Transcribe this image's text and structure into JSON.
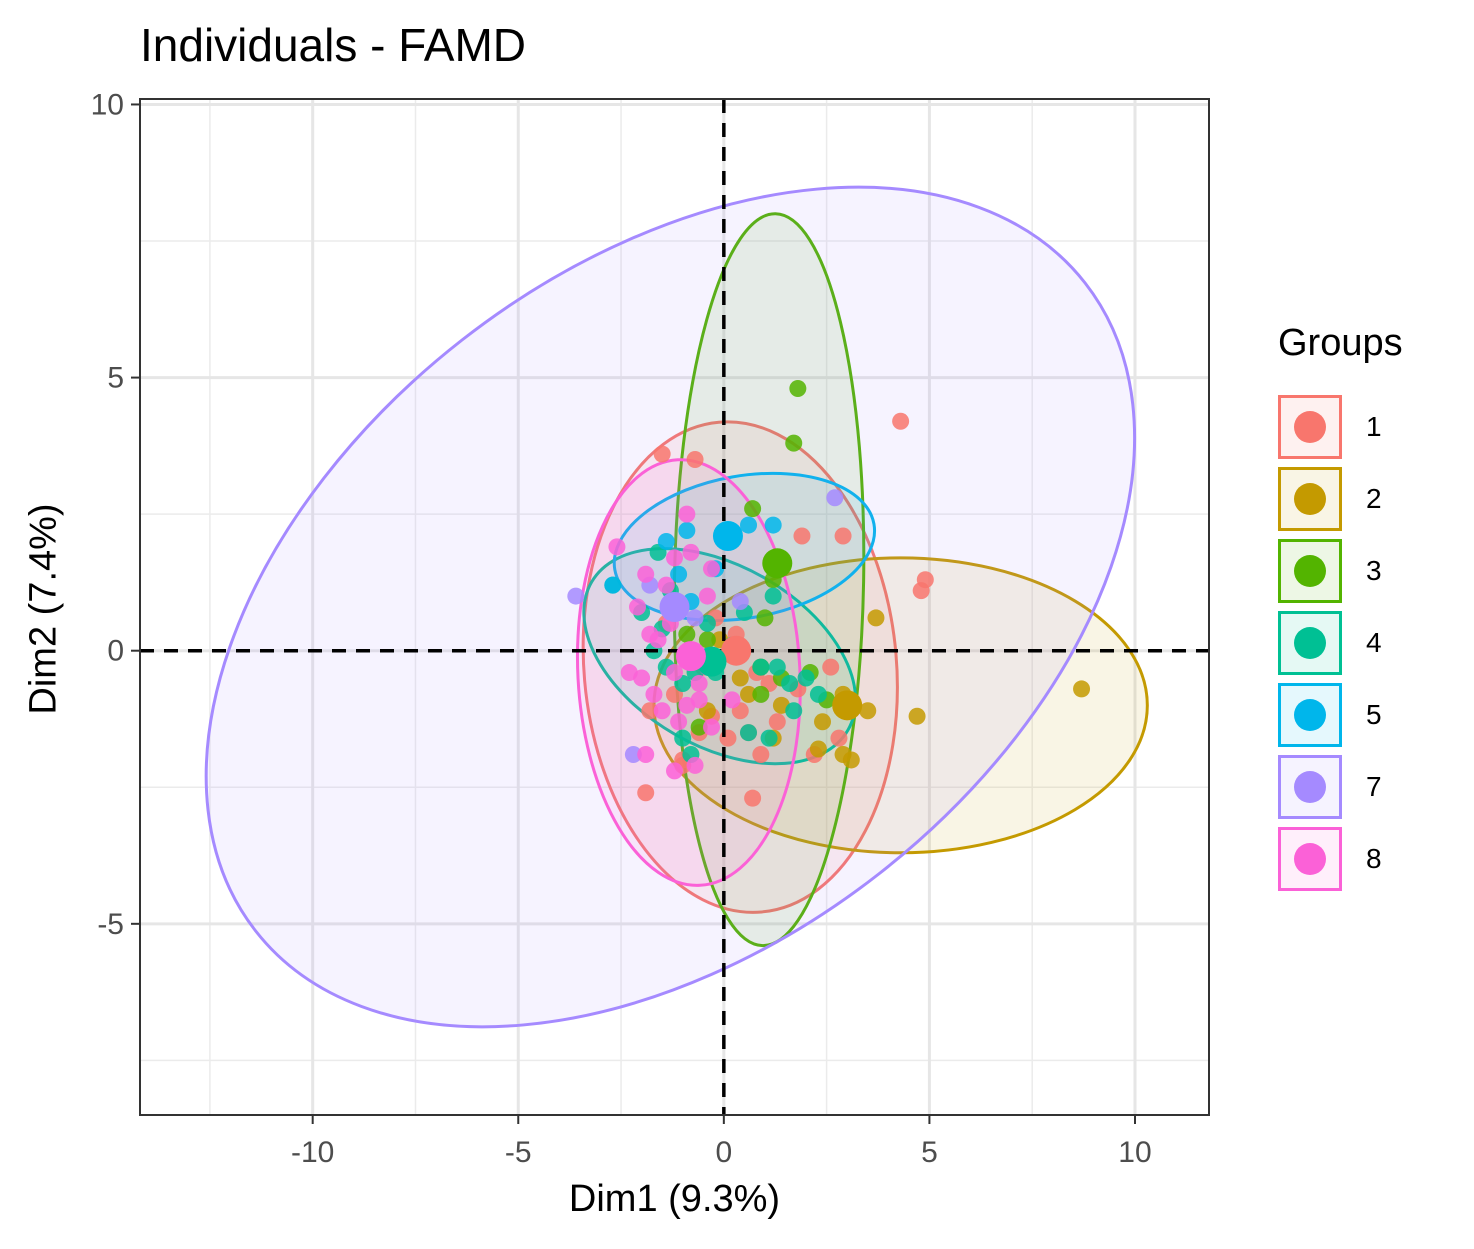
{
  "chart_data": {
    "type": "scatter",
    "title": "Individuals - FAMD",
    "xlabel": "Dim1 (9.3%)",
    "ylabel": "Dim2 (7.4%)",
    "xlim": [
      -14.2,
      11.8
    ],
    "ylim": [
      -8.5,
      10.1
    ],
    "x_ticks": [
      -10,
      -5,
      0,
      5,
      10
    ],
    "x_tick_labels": [
      "-10",
      "-5",
      "0",
      "5",
      "10"
    ],
    "y_ticks": [
      -5,
      0,
      5,
      10
    ],
    "y_tick_labels": [
      "-5",
      "0",
      "5",
      "10"
    ],
    "grid": true,
    "reference_lines": {
      "x": 0,
      "y": 0,
      "style": "dashed"
    },
    "legend": {
      "title": "Groups",
      "position": "right"
    },
    "groups": [
      {
        "name": "1",
        "color": "#F8766D",
        "centroid": [
          0.3,
          0.0
        ],
        "ellipse": {
          "cx": 0.4,
          "cy": -0.3,
          "rx": 3.8,
          "ry": 4.5,
          "angle": 5
        },
        "points": [
          [
            -1.5,
            3.6
          ],
          [
            -0.7,
            3.5
          ],
          [
            4.3,
            4.2
          ],
          [
            4.9,
            1.3
          ],
          [
            4.8,
            1.1
          ],
          [
            2.9,
            2.1
          ],
          [
            1.9,
            2.1
          ],
          [
            0.3,
            0.3
          ],
          [
            -0.5,
            -0.3
          ],
          [
            1.1,
            -0.6
          ],
          [
            -0.3,
            -1.2
          ],
          [
            0.9,
            -1.9
          ],
          [
            -1.0,
            -2.0
          ],
          [
            0.7,
            -2.7
          ],
          [
            -1.9,
            -2.6
          ],
          [
            -1.2,
            -0.8
          ],
          [
            0.1,
            -1.6
          ],
          [
            0.8,
            -0.4
          ],
          [
            -0.6,
            -1.5
          ],
          [
            1.8,
            -0.7
          ],
          [
            2.6,
            -0.3
          ],
          [
            -1.4,
            0.5
          ],
          [
            0.4,
            -1.1
          ],
          [
            -0.2,
            0.6
          ],
          [
            0.6,
            -1.5
          ],
          [
            1.3,
            -1.3
          ],
          [
            -1.8,
            -1.1
          ],
          [
            -1.0,
            -2.1
          ],
          [
            2.2,
            -1.9
          ],
          [
            2.8,
            -1.6
          ]
        ]
      },
      {
        "name": "2",
        "color": "#C49A00",
        "centroid": [
          3.0,
          -1.0
        ],
        "ellipse": {
          "cx": 4.3,
          "cy": -1.0,
          "rx": 6.0,
          "ry": 2.7,
          "angle": 0
        },
        "points": [
          [
            8.7,
            -0.7
          ],
          [
            4.7,
            -1.2
          ],
          [
            3.7,
            0.6
          ],
          [
            3.5,
            -1.1
          ],
          [
            3.1,
            -2.0
          ],
          [
            2.9,
            -0.8
          ],
          [
            2.4,
            -1.3
          ],
          [
            1.4,
            -1.0
          ],
          [
            0.4,
            -0.5
          ],
          [
            -0.1,
            0.2
          ],
          [
            0.6,
            -0.8
          ],
          [
            2.9,
            -1.9
          ],
          [
            2.3,
            -1.8
          ],
          [
            -0.4,
            -1.1
          ],
          [
            1.2,
            -1.6
          ]
        ]
      },
      {
        "name": "3",
        "color": "#53B400",
        "centroid": [
          1.3,
          1.6
        ],
        "ellipse": {
          "cx": 1.1,
          "cy": 1.3,
          "rx": 2.3,
          "ry": 6.7,
          "angle": -1
        },
        "points": [
          [
            1.8,
            4.8
          ],
          [
            1.7,
            3.8
          ],
          [
            0.7,
            2.6
          ],
          [
            1.2,
            1.3
          ],
          [
            0.9,
            -0.3
          ],
          [
            1.4,
            -0.5
          ],
          [
            0.9,
            -0.8
          ],
          [
            -0.4,
            0.2
          ],
          [
            2.1,
            -0.4
          ],
          [
            1.0,
            0.6
          ],
          [
            2.5,
            -0.9
          ],
          [
            -0.6,
            -1.4
          ],
          [
            -0.9,
            0.3
          ]
        ]
      },
      {
        "name": "4",
        "color": "#00C094",
        "centroid": [
          -0.3,
          -0.2
        ],
        "ellipse": {
          "cx": -0.1,
          "cy": -0.1,
          "rx": 3.6,
          "ry": 1.65,
          "angle": -30
        },
        "points": [
          [
            -1.6,
            1.8
          ],
          [
            -1.3,
            1.1
          ],
          [
            -1.5,
            0.4
          ],
          [
            -1.7,
            0.0
          ],
          [
            -1.4,
            -0.3
          ],
          [
            -1.0,
            -0.6
          ],
          [
            -0.7,
            -0.4
          ],
          [
            -0.4,
            0.5
          ],
          [
            0.3,
            -0.1
          ],
          [
            0.9,
            -0.3
          ],
          [
            1.3,
            -0.3
          ],
          [
            1.6,
            -0.6
          ],
          [
            2.0,
            -0.5
          ],
          [
            2.3,
            -0.8
          ],
          [
            -1.0,
            -1.6
          ],
          [
            -0.2,
            -0.4
          ],
          [
            0.5,
            0.7
          ],
          [
            1.2,
            1.0
          ],
          [
            -2.7,
            1.2
          ],
          [
            -2.0,
            0.7
          ],
          [
            0.6,
            -1.5
          ],
          [
            1.7,
            -1.1
          ],
          [
            -0.8,
            -1.9
          ],
          [
            0.2,
            0.1
          ],
          [
            1.1,
            -1.6
          ]
        ]
      },
      {
        "name": "5",
        "color": "#00B6EB",
        "centroid": [
          0.1,
          2.1
        ],
        "ellipse": {
          "cx": 0.5,
          "cy": 1.9,
          "rx": 3.2,
          "ry": 1.3,
          "angle": 10
        },
        "points": [
          [
            -1.4,
            2.0
          ],
          [
            -0.9,
            2.2
          ],
          [
            -0.2,
            1.5
          ],
          [
            0.6,
            2.3
          ],
          [
            1.2,
            2.3
          ],
          [
            -2.7,
            1.2
          ],
          [
            -1.1,
            1.4
          ],
          [
            -0.8,
            0.9
          ]
        ]
      },
      {
        "name": "7",
        "color": "#A58AFF",
        "centroid": [
          -1.2,
          0.8
        ],
        "ellipse": {
          "cx": -1.3,
          "cy": 0.8,
          "rx": 12.8,
          "ry": 6.2,
          "angle": 38
        },
        "points": [
          [
            -3.6,
            1.0
          ],
          [
            2.7,
            2.8
          ],
          [
            -2.2,
            -1.9
          ],
          [
            -1.8,
            1.2
          ],
          [
            -0.7,
            0.6
          ],
          [
            0.4,
            0.9
          ]
        ]
      },
      {
        "name": "8",
        "color": "#FB61D7",
        "centroid": [
          -0.8,
          -0.1
        ],
        "ellipse": {
          "cx": -0.85,
          "cy": -0.4,
          "rx": 2.7,
          "ry": 3.9,
          "angle": 3
        },
        "points": [
          [
            -0.9,
            2.5
          ],
          [
            -0.8,
            1.8
          ],
          [
            -0.3,
            1.5
          ],
          [
            -2.6,
            1.9
          ],
          [
            -1.9,
            1.4
          ],
          [
            -1.4,
            1.2
          ],
          [
            -1.2,
            1.7
          ],
          [
            -0.4,
            1.0
          ],
          [
            -2.1,
            0.8
          ],
          [
            -1.6,
            0.2
          ],
          [
            -1.2,
            -0.4
          ],
          [
            -0.6,
            -0.6
          ],
          [
            -0.9,
            -1.0
          ],
          [
            -1.5,
            -1.1
          ],
          [
            -2.0,
            -0.5
          ],
          [
            -1.1,
            -1.3
          ],
          [
            -0.3,
            -1.4
          ],
          [
            -0.7,
            -2.1
          ],
          [
            -1.2,
            -2.2
          ],
          [
            -1.7,
            -0.8
          ],
          [
            -1.9,
            -1.9
          ],
          [
            -0.4,
            -0.3
          ],
          [
            -2.3,
            -0.4
          ],
          [
            -1.3,
            0.5
          ],
          [
            0.2,
            -0.9
          ],
          [
            -0.6,
            -0.9
          ],
          [
            -1.8,
            0.3
          ]
        ]
      }
    ]
  }
}
